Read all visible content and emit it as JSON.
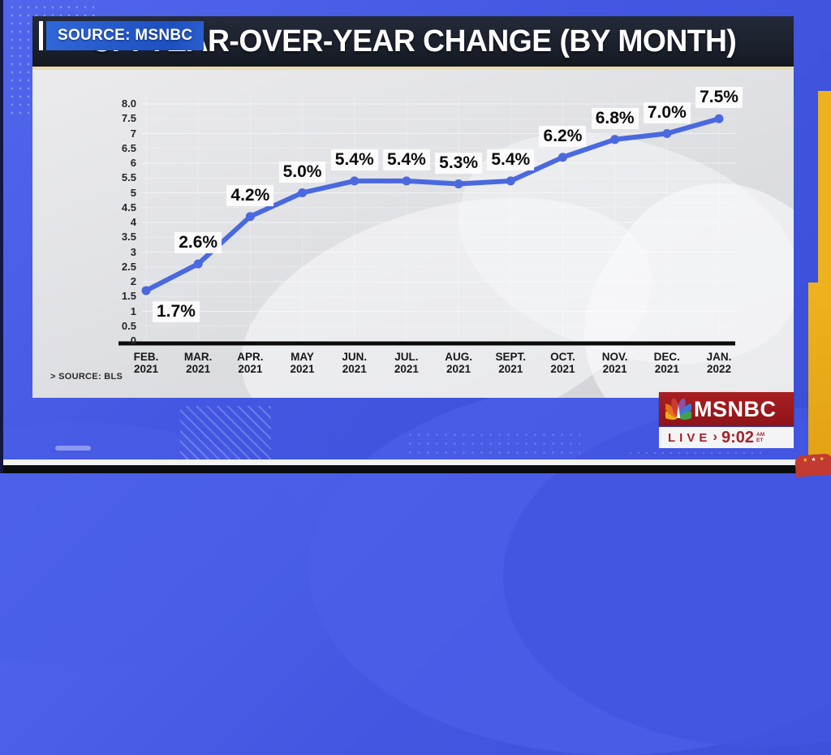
{
  "header": {
    "source_badge": "SOURCE: MSNBC",
    "title": "CPI YEAR-OVER-YEAR CHANGE (BY MONTH)"
  },
  "chart_data": {
    "type": "line",
    "title": "CPI YEAR-OVER-YEAR CHANGE (BY MONTH)",
    "categories": [
      {
        "month": "FEB.",
        "year": "2021"
      },
      {
        "month": "MAR.",
        "year": "2021"
      },
      {
        "month": "APR.",
        "year": "2021"
      },
      {
        "month": "MAY",
        "year": "2021"
      },
      {
        "month": "JUN.",
        "year": "2021"
      },
      {
        "month": "JUL.",
        "year": "2021"
      },
      {
        "month": "AUG.",
        "year": "2021"
      },
      {
        "month": "SEPT.",
        "year": "2021"
      },
      {
        "month": "OCT.",
        "year": "2021"
      },
      {
        "month": "NOV.",
        "year": "2021"
      },
      {
        "month": "DEC.",
        "year": "2021"
      },
      {
        "month": "JAN.",
        "year": "2022"
      }
    ],
    "values": [
      1.7,
      2.6,
      4.2,
      5.0,
      5.4,
      5.4,
      5.3,
      5.4,
      6.2,
      6.8,
      7.0,
      7.5
    ],
    "point_labels": [
      "1.7%",
      "2.6%",
      "4.2%",
      "5.0%",
      "5.4%",
      "5.4%",
      "5.3%",
      "5.4%",
      "6.2%",
      "6.8%",
      "7.0%",
      "7.5%"
    ],
    "ylim": [
      0,
      8
    ],
    "ytick_step": 0.5,
    "ytick_labels_top_to_bottom": [
      "8.0",
      "7.5",
      "7",
      "6.5",
      "6",
      "5.5",
      "5",
      "4.5",
      "4",
      "3.5",
      "3",
      "2.5",
      "2",
      "1.5",
      "1",
      "0.5",
      "0"
    ],
    "grid": true,
    "legend": "none",
    "line_color": "#4a68e0",
    "axis_color": "#0a0a0a",
    "source_note": "> SOURCE: BLS"
  },
  "bug": {
    "network": "MSNBC",
    "live": "LIVE",
    "arrow": "›",
    "time": "9:02",
    "meridiem": "AM",
    "tz": "ET"
  },
  "decor": {
    "stars": [
      "★",
      "★",
      "★"
    ],
    "accent_yellow": "#edb21d",
    "accent_red": "#a81e22",
    "frame_blue": "#4457e2"
  }
}
